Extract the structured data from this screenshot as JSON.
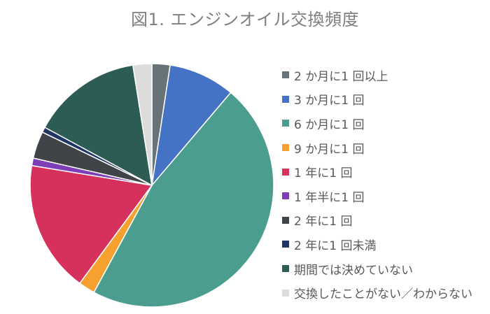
{
  "chart_data": {
    "type": "pie",
    "title": "図1. エンジンオイル交換頻度",
    "legend_position": "right",
    "slices": [
      {
        "label": "2 か月に1 回以上",
        "value": 2.4,
        "color": "#687279"
      },
      {
        "label": "3 か月に1 回",
        "value": 8.8,
        "color": "#4472c4"
      },
      {
        "label": "6 か月に1 回",
        "value": 46.7,
        "color": "#4b9d8f"
      },
      {
        "label": "9 か月に1 回",
        "value": 2.2,
        "color": "#f5a02f"
      },
      {
        "label": "1 年に1 回",
        "value": 17.5,
        "color": "#d6305d"
      },
      {
        "label": "1 年半に1 回",
        "value": 1.0,
        "color": "#7e3fb6"
      },
      {
        "label": "2 年に1 回",
        "value": 3.6,
        "color": "#404347"
      },
      {
        "label": "2 年に1 回未満",
        "value": 0.7,
        "color": "#1f3564"
      },
      {
        "label": "期間では決めていない",
        "value": 14.6,
        "color": "#2c5c53"
      },
      {
        "label": "交換したことがない／わからない",
        "value": 2.5,
        "color": "#dcdcdc"
      }
    ]
  }
}
